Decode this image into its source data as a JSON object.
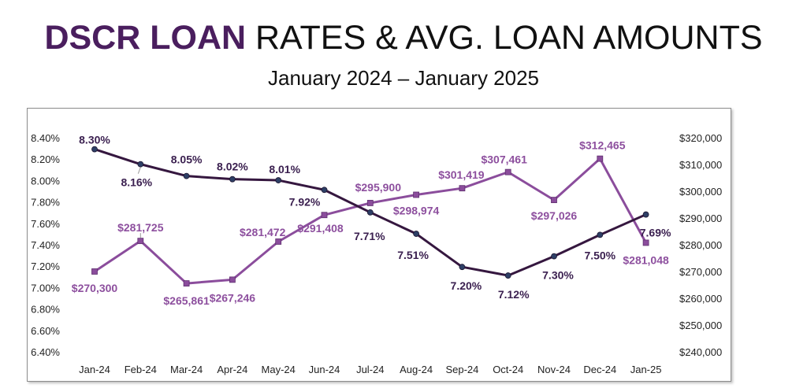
{
  "header": {
    "title_bold": "DSCR LOAN",
    "title_rest": " RATES & AVG. LOAN AMOUNTS",
    "subtitle": "January 2024 – January 2025"
  },
  "colors": {
    "rate_line": "#35173f",
    "amount_line": "#8b4d9c",
    "title_accent": "#4a1e5e"
  },
  "chart_data": {
    "type": "line",
    "title": "DSCR LOAN RATES & AVG. LOAN AMOUNTS",
    "subtitle": "January 2024 – January 2025",
    "categories": [
      "Jan-24",
      "Feb-24",
      "Mar-24",
      "Apr-24",
      "May-24",
      "Jun-24",
      "Jul-24",
      "Aug-24",
      "Sep-24",
      "Oct-24",
      "Nov-24",
      "Dec-24",
      "Jan-25"
    ],
    "series": [
      {
        "name": "DSCR Loan Rate",
        "axis": "left",
        "values": [
          8.3,
          8.16,
          8.05,
          8.02,
          8.01,
          7.92,
          7.71,
          7.51,
          7.2,
          7.12,
          7.3,
          7.5,
          7.69
        ],
        "labels": [
          "8.30%",
          "8.16%",
          "8.05%",
          "8.02%",
          "8.01%",
          "7.92%",
          "7.71%",
          "7.51%",
          "7.20%",
          "7.12%",
          "7.30%",
          "7.50%",
          "7.69%"
        ]
      },
      {
        "name": "Avg. Loan Amount",
        "axis": "right",
        "values": [
          270300,
          281725,
          265861,
          267246,
          281472,
          291408,
          295900,
          298974,
          301419,
          307461,
          297026,
          312465,
          281048
        ],
        "labels": [
          "$270,300",
          "$281,725",
          "$265,861",
          "$267,246",
          "$281,472",
          "$291,408",
          "$295,900",
          "$298,974",
          "$301,419",
          "$307,461",
          "$297,026",
          "$312,465",
          "$281,048"
        ]
      }
    ],
    "y_left": {
      "min": 6.4,
      "max": 8.4,
      "ticks": [
        "6.40%",
        "6.60%",
        "6.80%",
        "7.00%",
        "7.20%",
        "7.40%",
        "7.60%",
        "7.80%",
        "8.00%",
        "8.20%",
        "8.40%"
      ]
    },
    "y_right": {
      "min": 240000,
      "max": 320000,
      "ticks": [
        "$240,000",
        "$250,000",
        "$260,000",
        "$270,000",
        "$280,000",
        "$290,000",
        "$300,000",
        "$310,000",
        "$320,000"
      ]
    },
    "grid": false
  }
}
